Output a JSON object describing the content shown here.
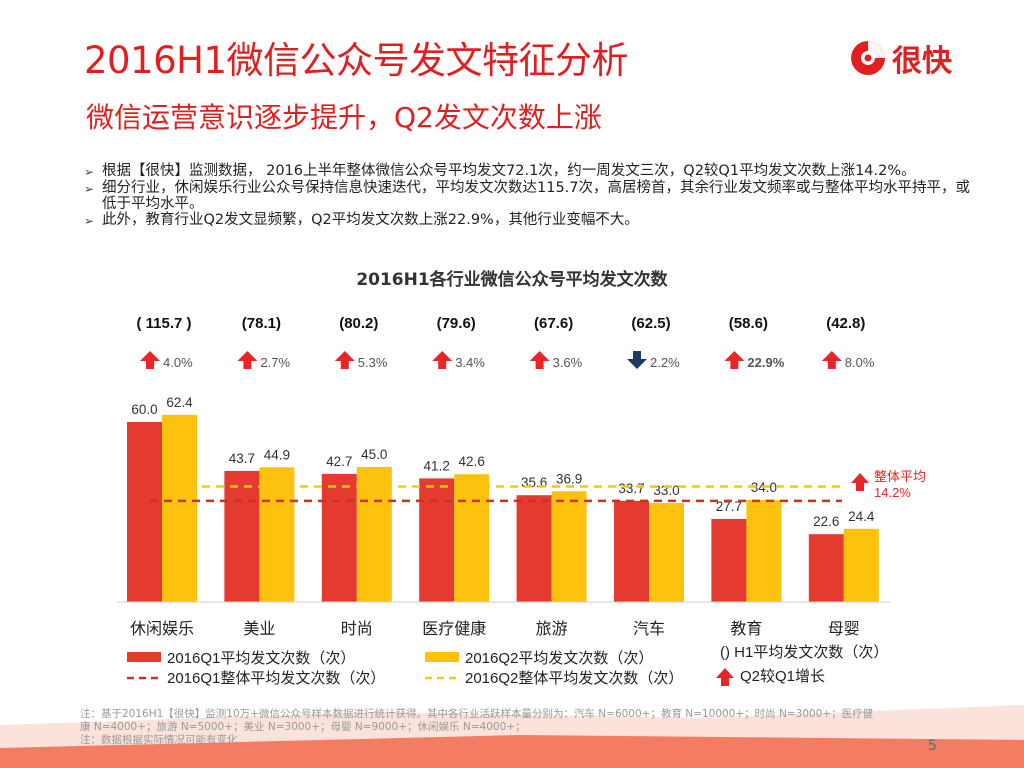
{
  "header": {
    "title": "2016H1微信公众号发文特征分析",
    "subtitle": "微信运营意识逐步提升，Q2发文次数上涨",
    "logo_text": "很快"
  },
  "bullets": [
    "根据【很快】监测数据， 2016上半年整体微信公众号平均发文72.1次，约一周发文三次，Q2较Q1平均发文次数上涨14.2%。",
    "细分行业，休闲娱乐行业公众号保持信息快速迭代，平均发文次数达115.7次，高居榜首，其余行业发文频率或与整体平均水平持平，或低于平均水平。",
    "此外，教育行业Q2发文显频繁，Q2平均发文次数上涨22.9%，其他行业变幅不大。"
  ],
  "footnote": {
    "line1": "注：基于2016H1【很快】监测10万+微信公众号样本数据进行统计获得。其中各行业活跃样本量分别为：汽车 N=6000+；教育 N=10000+；时尚 N=3000+；医疗健",
    "line2": "康 N=4000+；旅游 N=5000+；美业 N=3000+；母婴 N=9000+；休闲娱乐 N=4000+；",
    "line3": "注：数据根据实际情况可能有变化"
  },
  "page_number": "5",
  "colors": {
    "accent": "#e02020",
    "q1_bar": "#e43a2f",
    "q2_bar": "#fdc20d",
    "q1_avg_line": "#c8341d",
    "q2_avg_line": "#f5c518",
    "up_arrow": "#e8262a",
    "down_arrow": "#1f3864"
  },
  "chart_data": {
    "type": "bar",
    "title": "2016H1各行业微信公众号平均发文次数",
    "categories": [
      "休闲娱乐",
      "美业",
      "时尚",
      "医疗健康",
      "旅游",
      "汽车",
      "教育",
      "母婴"
    ],
    "series": [
      {
        "name": "2016Q1平均发文次数（次）",
        "values": [
          60.0,
          43.7,
          42.7,
          41.2,
          35.6,
          33.7,
          27.7,
          22.6
        ]
      },
      {
        "name": "2016Q2平均发文次数（次）",
        "values": [
          62.4,
          44.9,
          45.0,
          42.6,
          36.9,
          33.0,
          34.0,
          24.4
        ]
      }
    ],
    "value_labels": {
      "q1": [
        "60.0",
        "43.7",
        "42.7",
        "41.2",
        "35.6",
        "33.7",
        "27.7",
        "22.6"
      ],
      "q2": [
        "62.4",
        "44.9",
        "45.0",
        "42.6",
        "36.9",
        "33.0",
        "34.0",
        "24.4"
      ]
    },
    "h1_totals": [
      "( 115.7 )",
      "(78.1)",
      "(80.2)",
      "(79.6)",
      "(67.6)",
      "(62.5)",
      "(58.6)",
      "(42.8)"
    ],
    "growth": [
      {
        "label": "4.0%",
        "direction": "up",
        "bold": false
      },
      {
        "label": "2.7%",
        "direction": "up",
        "bold": false
      },
      {
        "label": "5.3%",
        "direction": "up",
        "bold": false
      },
      {
        "label": "3.4%",
        "direction": "up",
        "bold": false
      },
      {
        "label": "3.6%",
        "direction": "up",
        "bold": false
      },
      {
        "label": "2.2%",
        "direction": "down",
        "bold": false
      },
      {
        "label": "22.9%",
        "direction": "up",
        "bold": true
      },
      {
        "label": "8.0%",
        "direction": "up",
        "bold": false
      }
    ],
    "reference_lines": [
      {
        "name": "2016Q1整体平均发文次数（次）",
        "value": 33.7
      },
      {
        "name": "2016Q2整体平均发文次数（次）",
        "value": 38.5
      }
    ],
    "overall_annotation": {
      "label": "整体平均",
      "value": "14.2%"
    },
    "legend": {
      "q1_bar": "2016Q1平均发文次数（次）",
      "q2_bar": "2016Q2平均发文次数（次）",
      "q1_line": "2016Q1整体平均发文次数（次）",
      "q2_line": "2016Q2整体平均发文次数（次）",
      "h1": "() H1平均发文次数（次）",
      "growth": "Q2较Q1增长"
    },
    "ylim": [
      0,
      72
    ],
    "grid": false,
    "legend_position": "bottom"
  }
}
